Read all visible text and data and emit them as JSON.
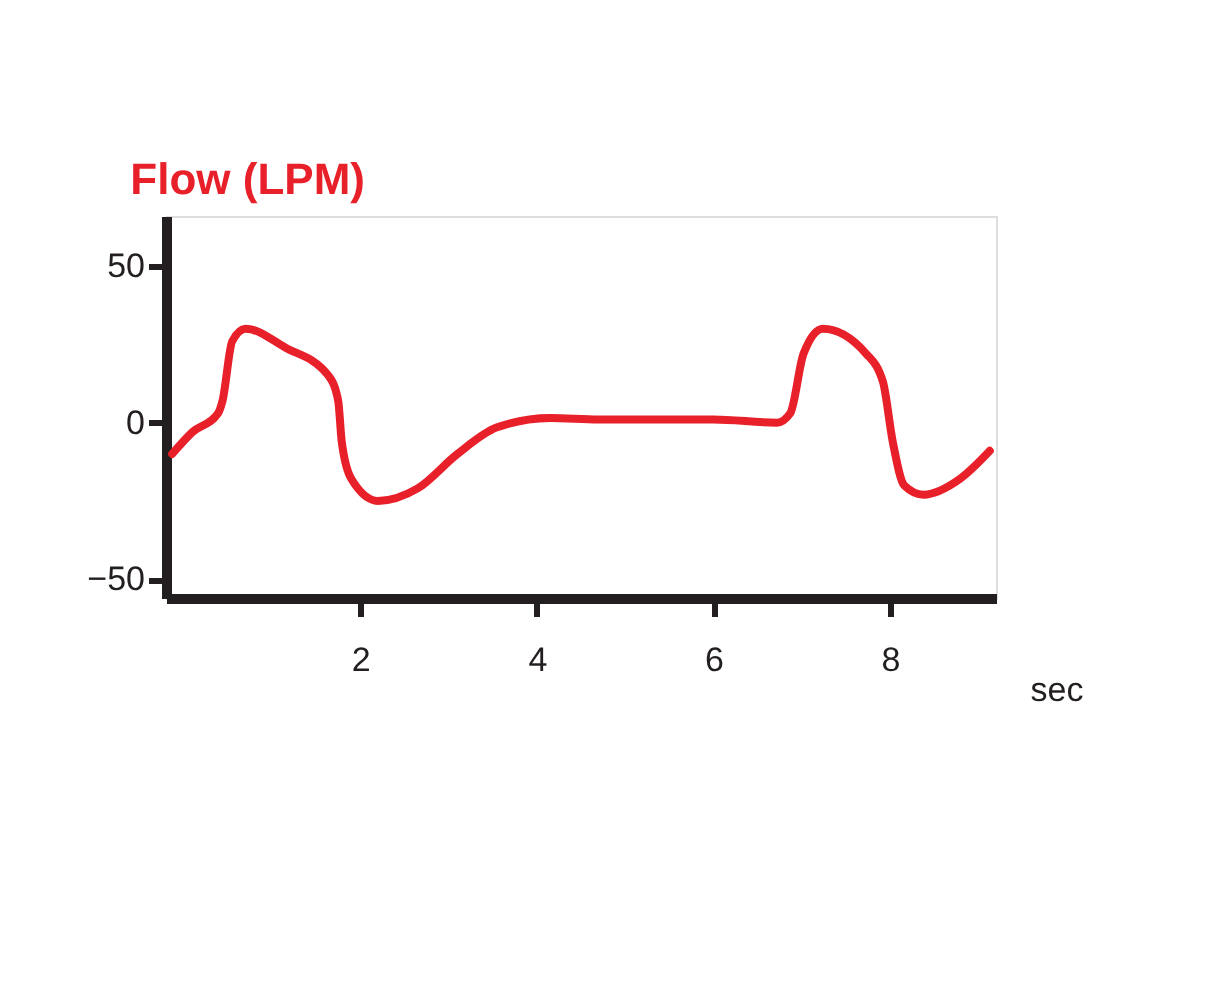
{
  "chart_data": {
    "type": "line",
    "title": "Flow (LPM)",
    "xlabel": "sec",
    "x": [
      -0.13,
      0.1,
      0.39,
      0.44,
      0.55,
      0.7,
      1.15,
      1.64,
      1.75,
      1.79,
      1.9,
      2.2,
      2.65,
      3.1,
      3.55,
      4.15,
      4.7,
      5.12,
      6.0,
      6.72,
      6.87,
      7.02,
      7.24,
      7.73,
      7.92,
      8.03,
      8.16,
      8.38,
      8.79,
      9.13
    ],
    "series": [
      {
        "color": "#e8202a",
        "values": [
          -10,
          -3,
          3,
          7,
          26,
          30,
          24,
          15,
          7,
          -6,
          -18,
          -25,
          -21,
          -10,
          -1.5,
          1.5,
          1,
          1,
          1,
          0,
          3,
          22,
          30,
          22,
          13,
          -6,
          -20,
          -23,
          -18,
          -9
        ]
      }
    ],
    "xlim": [
      -0.2,
      9.2
    ],
    "xticks": [
      2,
      4,
      6,
      8
    ],
    "ylim": [
      -56,
      66
    ],
    "yticks": [
      -50,
      0,
      50
    ],
    "grid": false,
    "legend": false,
    "marker": "none",
    "line_style": "solid"
  }
}
